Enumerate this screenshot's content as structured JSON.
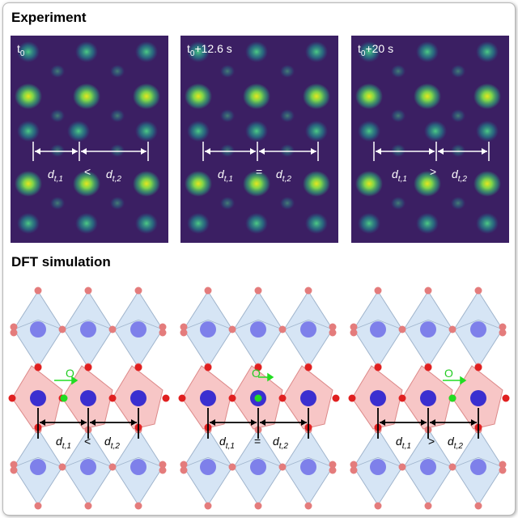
{
  "title_experiment": "Experiment",
  "title_dft": "DFT simulation",
  "experiment_panels": [
    {
      "time_base": "t",
      "time_sub": "0",
      "time_suffix": "",
      "comparator": "<"
    },
    {
      "time_base": "t",
      "time_sub": "0",
      "time_suffix": "+12.6 s",
      "comparator": "="
    },
    {
      "time_base": "t",
      "time_sub": "0",
      "time_suffix": "+20 s",
      "comparator": ">"
    }
  ],
  "distance_labels": {
    "d": "d",
    "sub1": "t,1",
    "sub2": "t,2"
  },
  "dft_panels": [
    {
      "o_label": "O",
      "comparator": "<"
    },
    {
      "o_label": "O",
      "comparator": "="
    },
    {
      "o_label": "O",
      "comparator": ">"
    }
  ],
  "colors": {
    "bg_dark": "#3b1f63",
    "spot_green": "#2db57a",
    "spot_yellow": "#e6e61e",
    "octa_blue": "#cfe0f3",
    "octa_red": "#f5b8b8",
    "atom_blue": "#3a2fd0",
    "atom_red": "#e02020",
    "o_green": "#22dd22"
  }
}
